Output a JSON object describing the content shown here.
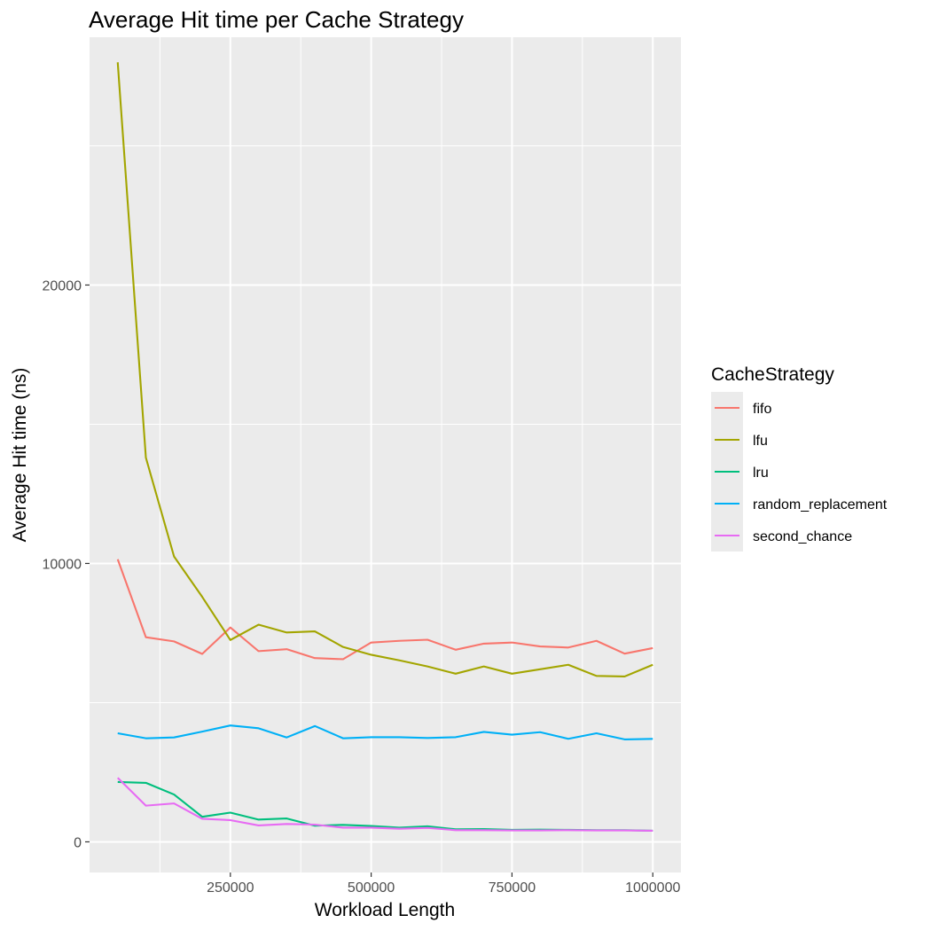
{
  "chart_data": {
    "type": "line",
    "title": "Average Hit time per Cache Strategy",
    "xlabel": "Workload Length",
    "ylabel": "Average Hit time (ns)",
    "xlim": [
      0,
      1050000
    ],
    "ylim": [
      -1100,
      28900
    ],
    "x_ticks": [
      250000,
      500000,
      750000,
      1000000
    ],
    "x_tick_labels": [
      "250000",
      "500000",
      "750000",
      "1000000"
    ],
    "y_ticks": [
      0,
      10000,
      20000
    ],
    "y_tick_labels": [
      "0",
      "10000",
      "20000"
    ],
    "grid": true,
    "legend": {
      "title": "CacheStrategy",
      "position": "right"
    },
    "x": [
      50000,
      100000,
      150000,
      200000,
      250000,
      300000,
      350000,
      400000,
      450000,
      500000,
      550000,
      600000,
      650000,
      700000,
      750000,
      800000,
      850000,
      900000,
      950000,
      1000000
    ],
    "series": [
      {
        "name": "fifo",
        "color": "#F8766D",
        "values": [
          10150,
          7350,
          7200,
          6750,
          7700,
          6850,
          6920,
          6600,
          6560,
          7160,
          7220,
          7260,
          6900,
          7120,
          7160,
          7020,
          6980,
          7220,
          6760,
          6960
        ]
      },
      {
        "name": "lfu",
        "color": "#A3A500",
        "values": [
          28000,
          13800,
          10250,
          8800,
          7250,
          7800,
          7520,
          7560,
          7000,
          6720,
          6520,
          6300,
          6040,
          6300,
          6040,
          6200,
          6360,
          5960,
          5940,
          6360
        ]
      },
      {
        "name": "lru",
        "color": "#00BF7D",
        "values": [
          2150,
          2120,
          1700,
          900,
          1050,
          800,
          840,
          580,
          610,
          570,
          510,
          560,
          450,
          460,
          430,
          440,
          430,
          420,
          420,
          400
        ]
      },
      {
        "name": "random_replacement",
        "color": "#00B0F6",
        "values": [
          3900,
          3720,
          3750,
          3960,
          4180,
          4080,
          3750,
          4160,
          3720,
          3760,
          3760,
          3730,
          3760,
          3950,
          3850,
          3940,
          3700,
          3900,
          3680,
          3700
        ]
      },
      {
        "name": "second_chance",
        "color": "#E76BF3",
        "values": [
          2300,
          1300,
          1380,
          830,
          780,
          590,
          640,
          620,
          510,
          510,
          470,
          500,
          420,
          420,
          410,
          410,
          420,
          410,
          410,
          400
        ]
      }
    ]
  }
}
